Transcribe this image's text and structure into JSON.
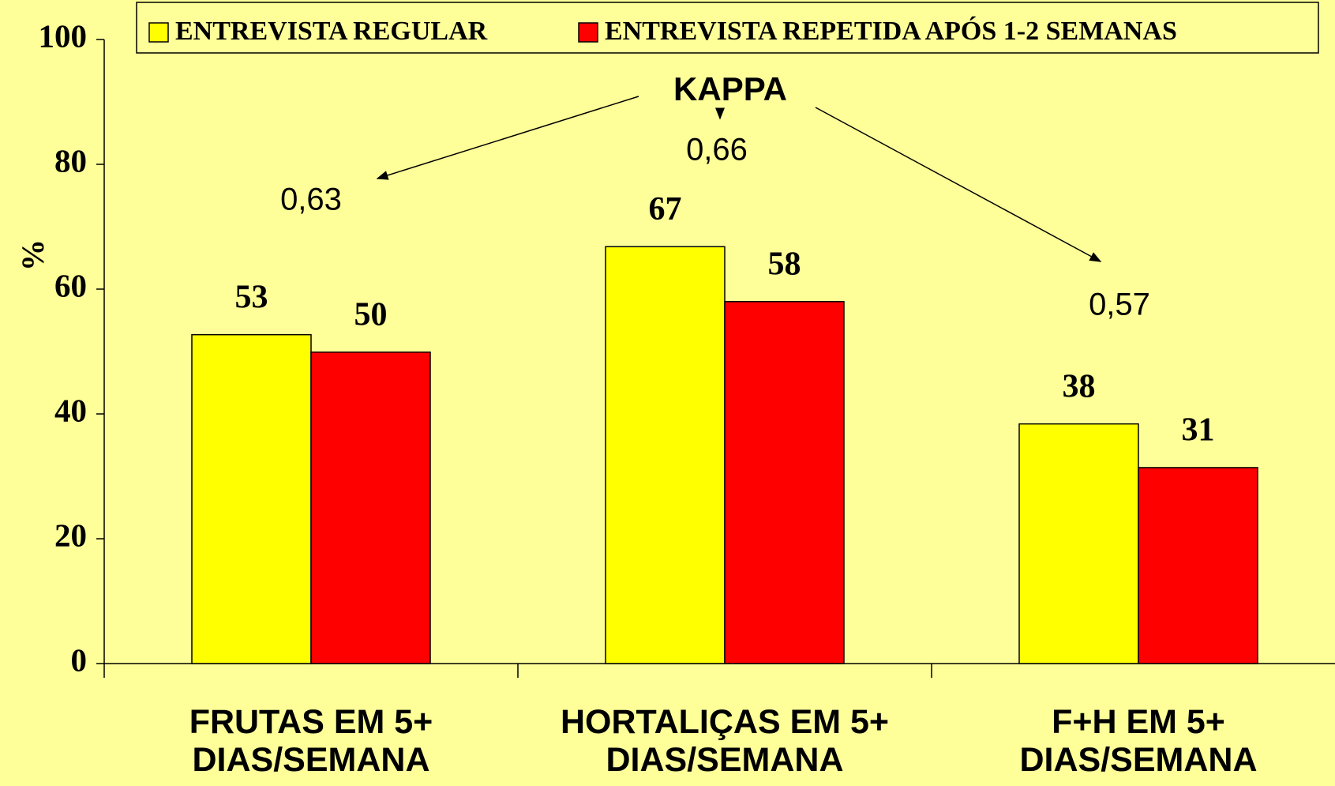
{
  "chart_data": {
    "type": "bar",
    "categories": [
      "FRUTAS EM  5+\nDIAS/SEMANA",
      "HORTALIÇAS EM 5+\nDIAS/SEMANA",
      "F+H EM 5+\nDIAS/SEMANA"
    ],
    "y_label": "%",
    "series": [
      {
        "name": "ENTREVISTA REGULAR",
        "color": "#ffff00",
        "values": [
          52.7,
          66.8,
          38.4
        ],
        "value_labels": [
          "53",
          "67",
          "38"
        ]
      },
      {
        "name": "ENTREVISTA REPETIDA APÓS  1-2 SEMANAS",
        "color": "#ff0000",
        "values": [
          49.9,
          58,
          31.4
        ],
        "value_labels": [
          "50",
          "58",
          "31"
        ]
      }
    ],
    "ylim": [
      0,
      100
    ],
    "yticks": [
      0,
      20,
      40,
      60,
      80,
      100
    ],
    "legend": "top",
    "annotations": [
      "KAPPA",
      "0,63",
      "0,66",
      "0,57"
    ]
  }
}
